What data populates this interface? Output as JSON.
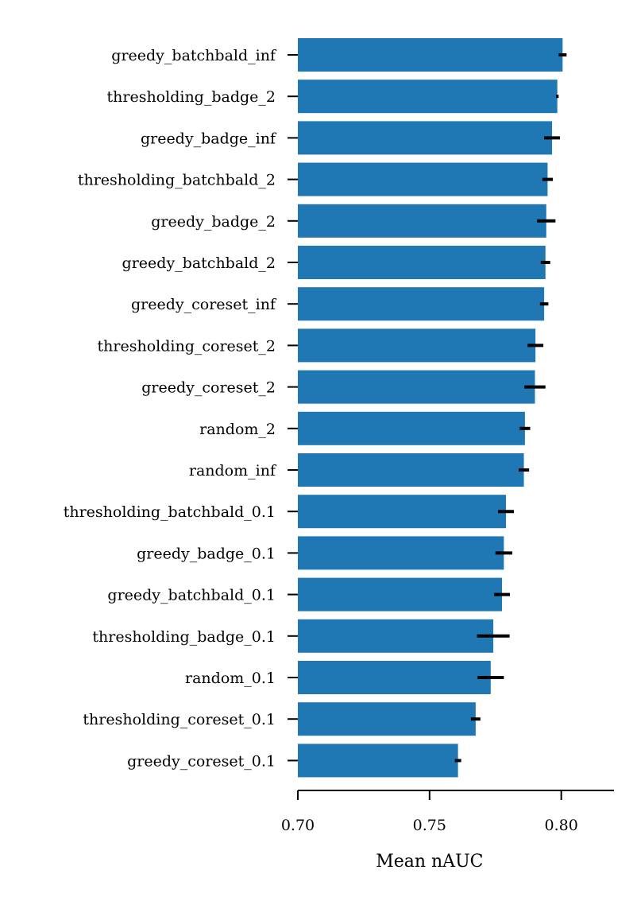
{
  "chart_data": {
    "type": "bar",
    "orientation": "horizontal",
    "xlabel": "Mean nAUC",
    "ylabel": "",
    "xlim": [
      0.7,
      0.82
    ],
    "xticks": [
      0.7,
      0.75,
      0.8
    ],
    "xtick_labels": [
      "0.70",
      "0.75",
      "0.80"
    ],
    "grid": false,
    "bar_color": "#1f77b4",
    "error_color": "#000000",
    "categories": [
      "greedy_batchbald_inf",
      "thresholding_badge_2",
      "greedy_badge_inf",
      "thresholding_batchbald_2",
      "greedy_badge_2",
      "greedy_batchbald_2",
      "greedy_coreset_inf",
      "thresholding_coreset_2",
      "greedy_coreset_2",
      "random_2",
      "random_inf",
      "thresholding_batchbald_0.1",
      "greedy_badge_0.1",
      "greedy_batchbald_0.1",
      "thresholding_badge_0.1",
      "random_0.1",
      "thresholding_coreset_0.1",
      "greedy_coreset_0.1"
    ],
    "values": [
      0.8005,
      0.7985,
      0.7965,
      0.7948,
      0.7943,
      0.794,
      0.7935,
      0.7902,
      0.79,
      0.7862,
      0.7858,
      0.779,
      0.7782,
      0.7775,
      0.7742,
      0.7732,
      0.7675,
      0.7608
    ],
    "errors": [
      0.0015,
      0.0005,
      0.003,
      0.002,
      0.0035,
      0.0018,
      0.0016,
      0.003,
      0.004,
      0.002,
      0.002,
      0.003,
      0.0032,
      0.003,
      0.0062,
      0.005,
      0.0018,
      0.0012
    ]
  }
}
